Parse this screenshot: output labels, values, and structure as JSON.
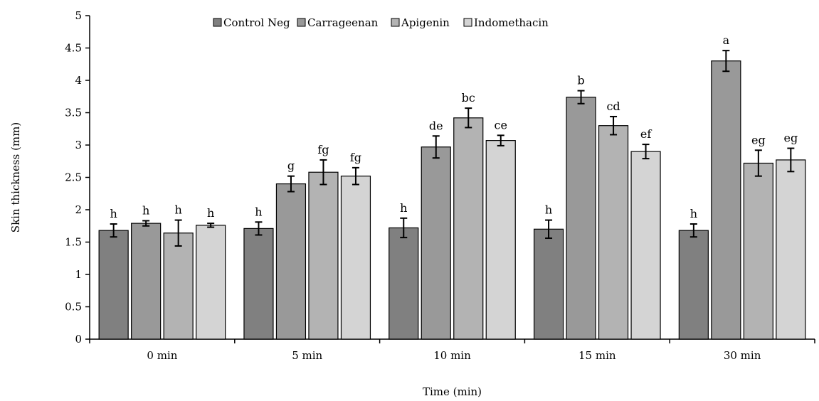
{
  "chart_data": {
    "type": "bar",
    "title": "",
    "xlabel": "Time (min)",
    "ylabel": "Skin thickness (mm)",
    "ylim": [
      0,
      5
    ],
    "ytick_step": 0.5,
    "yticks": [
      "0",
      "0.5",
      "1",
      "1.5",
      "2",
      "2.5",
      "3",
      "3.5",
      "4",
      "4.5",
      "5"
    ],
    "grid": false,
    "legend_position": "top-center",
    "categories": [
      "0 min",
      "5 min",
      "10 min",
      "15 min",
      "30 min"
    ],
    "series": [
      {
        "name": "Control Neg",
        "color": "#808080",
        "values": [
          1.68,
          1.71,
          1.72,
          1.7,
          1.68
        ],
        "errors": [
          0.1,
          0.1,
          0.15,
          0.14,
          0.1
        ],
        "labels": [
          "h",
          "h",
          "h",
          "h",
          "h"
        ]
      },
      {
        "name": "Carrageenan",
        "color": "#999999",
        "values": [
          1.79,
          2.4,
          2.97,
          3.74,
          4.3
        ],
        "errors": [
          0.04,
          0.12,
          0.17,
          0.1,
          0.16
        ],
        "labels": [
          "h",
          "g",
          "de",
          "b",
          "a"
        ]
      },
      {
        "name": "Apigenin",
        "color": "#b3b3b3",
        "values": [
          1.64,
          2.58,
          3.42,
          3.3,
          2.72
        ],
        "errors": [
          0.2,
          0.19,
          0.15,
          0.14,
          0.2
        ],
        "labels": [
          "h",
          "fg",
          "bc",
          "cd",
          "eg"
        ]
      },
      {
        "name": "Indomethacin",
        "color": "#d4d4d4",
        "values": [
          1.76,
          2.52,
          3.07,
          2.9,
          2.77
        ],
        "errors": [
          0.03,
          0.13,
          0.08,
          0.11,
          0.18
        ],
        "labels": [
          "h",
          "fg",
          "ce",
          "ef",
          "eg"
        ]
      }
    ]
  }
}
